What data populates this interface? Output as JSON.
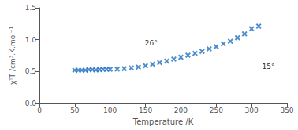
{
  "chart_data": {
    "type": "scatter",
    "xlabel": "Temperature /K",
    "ylabel": "χᵀT /cm³.K.mol⁻¹",
    "x": [
      50,
      55,
      60,
      65,
      70,
      75,
      80,
      85,
      90,
      95,
      100,
      110,
      120,
      130,
      140,
      150,
      160,
      170,
      180,
      190,
      200,
      210,
      220,
      230,
      240,
      250,
      260,
      270,
      280,
      290,
      300,
      310
    ],
    "values": [
      0.52,
      0.52,
      0.52,
      0.52,
      0.53,
      0.53,
      0.525,
      0.53,
      0.535,
      0.535,
      0.535,
      0.538,
      0.545,
      0.555,
      0.57,
      0.59,
      0.615,
      0.64,
      0.665,
      0.695,
      0.725,
      0.755,
      0.785,
      0.815,
      0.855,
      0.89,
      0.935,
      0.975,
      1.03,
      1.09,
      1.17,
      1.21
    ],
    "color": "#2272c3",
    "marker": "x",
    "xlim": [
      0,
      350
    ],
    "ylim": [
      0,
      1.5
    ],
    "xticks": [
      0,
      50,
      100,
      150,
      200,
      250,
      300,
      350
    ],
    "yticks": [
      {
        "value": 0,
        "label": "0.0"
      },
      0.5,
      {
        "value": 1,
        "label": "1.0"
      },
      1.5
    ],
    "annotations": [
      "26°",
      "15°"
    ],
    "grid": false
  }
}
